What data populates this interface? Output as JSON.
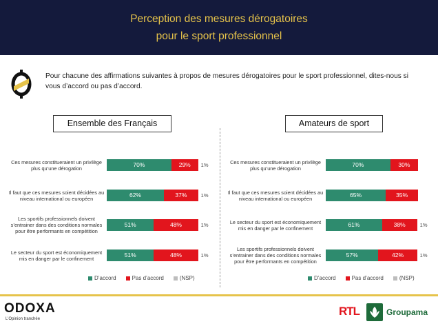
{
  "header": {
    "title_line1": "Perception des mesures dérogatoires",
    "title_line2": "pour le sport professionnel"
  },
  "question": "Pour chacune des affirmations suivantes à propos de mesures dérogatoires pour le sport professionnel, dites-nous si vous d’accord ou pas d’accord.",
  "colors": {
    "accord": "#2e8b6e",
    "pas_accord": "#e2151d",
    "nsp": "#bdbdbd",
    "header_bg": "#141a3c",
    "gold": "#e6c34a"
  },
  "chart_data": [
    {
      "type": "bar",
      "orientation": "horizontal-stacked",
      "title": "Ensemble des Français",
      "categories": [
        [
          "Ces mesures constitueraient un privilège",
          "plus qu’une dérogation"
        ],
        [
          "Il faut que ces mesures soient décidées au",
          "niveau international ou européen"
        ],
        [
          "Les sportifs professionnels doivent",
          "s’entrainer dans des conditions normales",
          "pour être performants en compétition"
        ],
        [
          "Le secteur du sport est économiquement",
          "mis en danger par le confinement"
        ]
      ],
      "series": [
        {
          "name": "D’accord",
          "values": [
            70,
            62,
            51,
            51
          ]
        },
        {
          "name": "Pas d’accord",
          "values": [
            29,
            37,
            48,
            48
          ]
        },
        {
          "name": "(NSP)",
          "values": [
            1,
            1,
            1,
            1
          ]
        }
      ],
      "value_labels": {
        "accord": [
          "70%",
          "62%",
          "51%",
          "51%"
        ],
        "pas_accord": [
          "29%",
          "37%",
          "48%",
          "48%"
        ],
        "nsp": [
          "1%",
          "1%",
          "1%",
          "1%"
        ]
      },
      "xlim": [
        0,
        100
      ],
      "legend_position": "bottom"
    },
    {
      "type": "bar",
      "orientation": "horizontal-stacked",
      "title": "Amateurs de sport",
      "categories": [
        [
          "Ces mesures constitueraient un privilège",
          "plus qu’une dérogation"
        ],
        [
          "Il faut que ces mesures soient décidées au",
          "niveau international ou européen"
        ],
        [
          "Le secteur du sport est économiquement",
          "mis en danger par le confinement"
        ],
        [
          "Les sportifs professionnels doivent",
          "s’entrainer dans des conditions normales",
          "pour être performants en compétition"
        ]
      ],
      "series": [
        {
          "name": "D’accord",
          "values": [
            70,
            65,
            61,
            57
          ]
        },
        {
          "name": "Pas d’accord",
          "values": [
            30,
            35,
            38,
            42
          ]
        },
        {
          "name": "(NSP)",
          "values": [
            0,
            0,
            1,
            1
          ]
        }
      ],
      "value_labels": {
        "accord": [
          "70%",
          "65%",
          "61%",
          "57%"
        ],
        "pas_accord": [
          "30%",
          "35%",
          "38%",
          "42%"
        ],
        "nsp": [
          "",
          "",
          "1%",
          "1%"
        ]
      },
      "xlim": [
        0,
        100
      ],
      "legend_position": "bottom"
    }
  ],
  "legend": {
    "accord": "D’accord",
    "pas_accord": "Pas d’accord",
    "nsp": "(NSP)"
  },
  "footer": {
    "brand": "ODOXA",
    "tagline": "L’Opinion tranchée",
    "partner1": "RTL",
    "partner2": "Groupama"
  }
}
